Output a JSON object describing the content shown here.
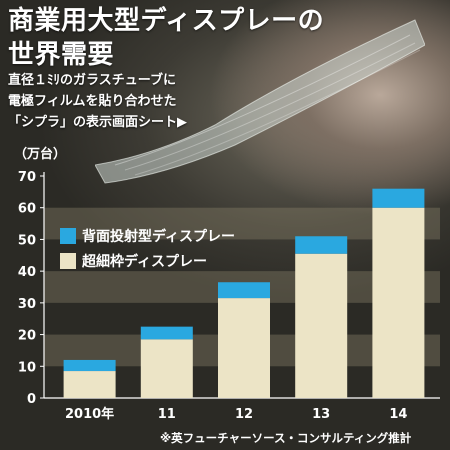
{
  "title_lines": [
    "商業用大型ディスプレーの",
    "世界需要"
  ],
  "subtitle_lines": [
    "直径１ﾐﾘのガラスチューブに",
    "電極フィルムを貼り合わせた",
    "「シプラ」の表示画面シート▶"
  ],
  "unit_label": "（万台）",
  "source_note": "※英フューチャーソース・コンサルティング推計",
  "colors": {
    "back_panel": "#2aa8e0",
    "narrow_bezel": "#ece4c6"
  },
  "chart_data": {
    "type": "bar",
    "stacked": true,
    "categories": [
      "2010年",
      "11",
      "12",
      "13",
      "14"
    ],
    "series": [
      {
        "name": "超細枠ディスプレー",
        "values": [
          8.5,
          18.5,
          31.5,
          45.5,
          60
        ]
      },
      {
        "name": "背面投射型ディスプレー",
        "values": [
          3.5,
          4,
          5,
          5.5,
          6
        ]
      }
    ],
    "yticks": [
      0,
      10,
      20,
      30,
      40,
      50,
      60,
      70
    ],
    "ylim": [
      0,
      70
    ],
    "grid": "horizontal bands",
    "legend_position": "middle-left"
  }
}
